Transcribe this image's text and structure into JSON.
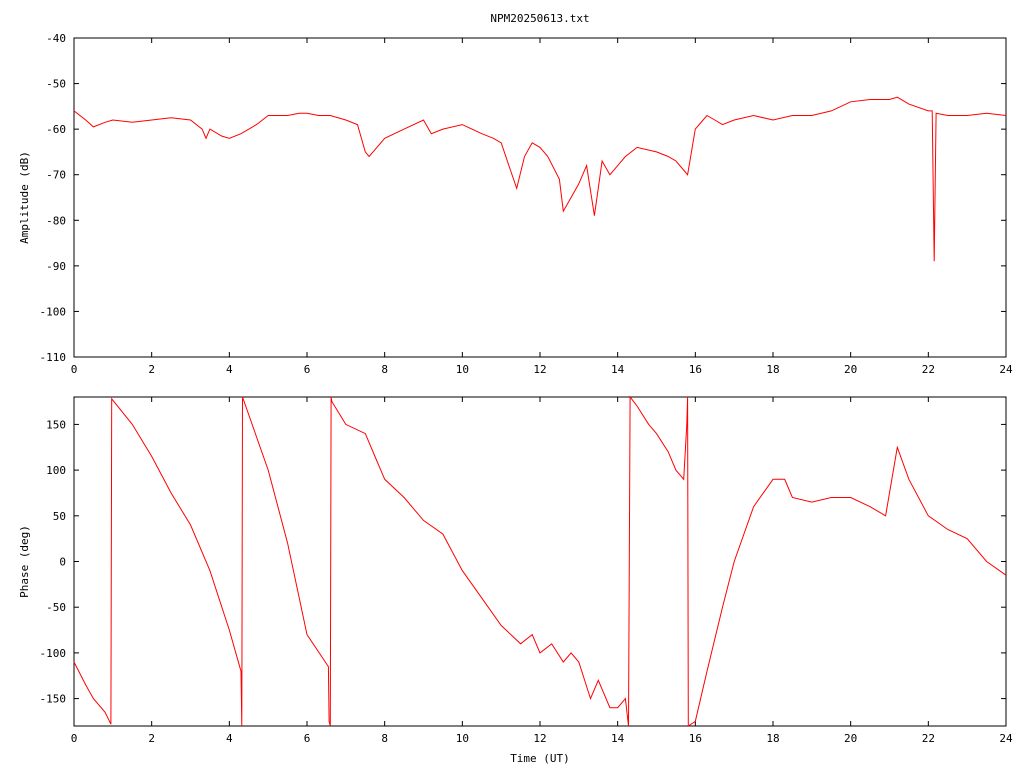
{
  "chart_data": [
    {
      "type": "line",
      "title": "NPM20250613.txt",
      "xlabel": "",
      "ylabel": "Amplitude (dB)",
      "xlim": [
        0,
        24
      ],
      "ylim": [
        -110,
        -40
      ],
      "xticks": [
        "0",
        "2",
        "4",
        "6",
        "8",
        "10",
        "12",
        "14",
        "16",
        "18",
        "20",
        "22",
        "24"
      ],
      "yticks": [
        "-40",
        "-50",
        "-60",
        "-70",
        "-80",
        "-90",
        "-100",
        "-110"
      ],
      "grid": false,
      "series_color": "#ff0000",
      "x": [
        0,
        0.3,
        0.5,
        0.8,
        1.0,
        1.5,
        2.0,
        2.5,
        3.0,
        3.3,
        3.4,
        3.5,
        3.8,
        4.0,
        4.3,
        4.7,
        5.0,
        5.5,
        5.8,
        6.0,
        6.3,
        6.6,
        7.0,
        7.3,
        7.5,
        7.6,
        7.8,
        8.0,
        8.5,
        9.0,
        9.2,
        9.5,
        10.0,
        10.5,
        10.8,
        11.0,
        11.2,
        11.4,
        11.6,
        11.8,
        12.0,
        12.2,
        12.5,
        12.6,
        12.8,
        13.0,
        13.2,
        13.4,
        13.6,
        13.8,
        14.0,
        14.2,
        14.5,
        15.0,
        15.3,
        15.5,
        15.8,
        16.0,
        16.2,
        16.3,
        16.5,
        16.7,
        17.0,
        17.5,
        18.0,
        18.5,
        19.0,
        19.5,
        20.0,
        20.5,
        21.0,
        21.2,
        21.5,
        22.0,
        22.1,
        22.15,
        22.2,
        22.5,
        23.0,
        23.5,
        24.0
      ],
      "y": [
        -56,
        -58,
        -59.5,
        -58.5,
        -58,
        -58.5,
        -58,
        -57.5,
        -58,
        -60,
        -62,
        -60,
        -61.5,
        -62,
        -61,
        -59,
        -57,
        -57,
        -56.5,
        -56.5,
        -57,
        -57,
        -58,
        -59,
        -65,
        -66,
        -64,
        -62,
        -60,
        -58,
        -61,
        -60,
        -59,
        -61,
        -62,
        -63,
        -68,
        -73,
        -66,
        -63,
        -64,
        -66,
        -71,
        -78,
        -75,
        -72,
        -68,
        -79,
        -67,
        -70,
        -68,
        -66,
        -64,
        -65,
        -66,
        -67,
        -70,
        -60,
        -58,
        -57,
        -58,
        -59,
        -58,
        -57,
        -58,
        -57,
        -57,
        -56,
        -54,
        -53.5,
        -53.5,
        -53,
        -54.5,
        -56,
        -56,
        -89,
        -56.5,
        -57,
        -57,
        -56.5,
        -57
      ]
    },
    {
      "type": "line",
      "title": "",
      "xlabel": "Time (UT)",
      "ylabel": "Phase (deg)",
      "xlim": [
        0,
        24
      ],
      "ylim": [
        -180,
        180
      ],
      "xticks": [
        "0",
        "2",
        "4",
        "6",
        "8",
        "10",
        "12",
        "14",
        "16",
        "18",
        "20",
        "22",
        "24"
      ],
      "yticks": [
        "150",
        "100",
        "50",
        "0",
        "-50",
        "-100",
        "-150"
      ],
      "grid": false,
      "series_color": "#ff0000",
      "x": [
        0,
        0.3,
        0.5,
        0.8,
        0.95,
        0.96,
        0.97,
        1.5,
        2.0,
        2.5,
        3.0,
        3.5,
        4.0,
        4.3,
        4.32,
        4.34,
        5.0,
        5.5,
        6.0,
        6.55,
        6.57,
        6.6,
        6.62,
        6.64,
        7.0,
        7.5,
        7.8,
        8.0,
        8.5,
        9.0,
        9.5,
        10.0,
        10.5,
        11.0,
        11.5,
        11.8,
        12.0,
        12.3,
        12.6,
        12.8,
        13.0,
        13.3,
        13.5,
        13.8,
        14.0,
        14.2,
        14.28,
        14.3,
        14.32,
        14.5,
        14.8,
        15.0,
        15.3,
        15.5,
        15.7,
        15.78,
        15.8,
        15.82,
        16.0,
        16.3,
        16.7,
        17.0,
        17.5,
        18.0,
        18.3,
        18.5,
        19.0,
        19.5,
        20.0,
        20.5,
        20.9,
        21.0,
        21.2,
        21.5,
        22.0,
        22.5,
        23.0,
        23.5,
        24.0
      ],
      "y": [
        -110,
        -135,
        -150,
        -165,
        -178,
        0,
        178,
        150,
        115,
        75,
        40,
        -10,
        -75,
        -120,
        -180,
        180,
        100,
        20,
        -80,
        -115,
        -175,
        -180,
        180,
        175,
        150,
        140,
        110,
        90,
        70,
        45,
        30,
        -10,
        -40,
        -70,
        -90,
        -80,
        -100,
        -90,
        -110,
        -100,
        -110,
        -150,
        -130,
        -160,
        -160,
        -150,
        -180,
        0,
        180,
        170,
        150,
        140,
        120,
        100,
        90,
        150,
        180,
        -180,
        -175,
        -120,
        -50,
        0,
        60,
        90,
        90,
        70,
        65,
        70,
        70,
        60,
        50,
        75,
        125,
        90,
        50,
        35,
        25,
        0,
        -15
      ]
    }
  ]
}
